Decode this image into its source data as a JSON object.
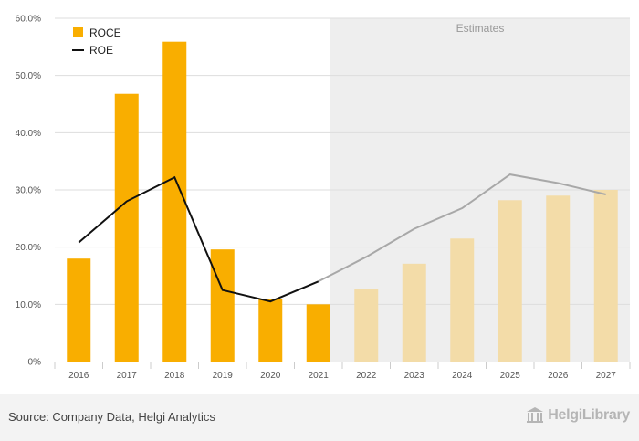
{
  "chart_data": {
    "type": "bar",
    "categories": [
      "2016",
      "2017",
      "2018",
      "2019",
      "2020",
      "2021",
      "2022",
      "2023",
      "2024",
      "2025",
      "2026",
      "2027"
    ],
    "series": [
      {
        "name": "ROCE",
        "kind": "bar",
        "values": [
          18.0,
          46.8,
          55.9,
          19.6,
          10.9,
          10.0,
          12.6,
          17.1,
          21.5,
          28.2,
          29.0,
          30.0
        ]
      },
      {
        "name": "ROE",
        "kind": "line",
        "values": [
          20.8,
          28.0,
          32.2,
          12.5,
          10.5,
          14.0,
          18.3,
          23.2,
          26.8,
          32.7,
          31.2,
          29.2
        ]
      }
    ],
    "estimates_start": "2022",
    "estimates_label": "Estimates",
    "ylim": [
      0,
      60
    ],
    "yticks": [
      0,
      10,
      20,
      30,
      40,
      50,
      60
    ],
    "ytick_labels": [
      "0%",
      "10.0%",
      "20.0%",
      "30.0%",
      "40.0%",
      "50.0%",
      "60.0%"
    ],
    "legend": [
      "ROCE",
      "ROE"
    ],
    "legend_position": "top-left",
    "title": "",
    "xlabel": "",
    "ylabel": ""
  },
  "colors": {
    "bar": "#f9ae00",
    "bar_estimate": "#f3dca8",
    "line": "#111111",
    "line_estimate": "#a8a8a8",
    "estimate_bg": "#eeeeee"
  },
  "footer": {
    "source": "Source: Company Data, Helgi Analytics",
    "brand": "HelgiLibrary"
  }
}
